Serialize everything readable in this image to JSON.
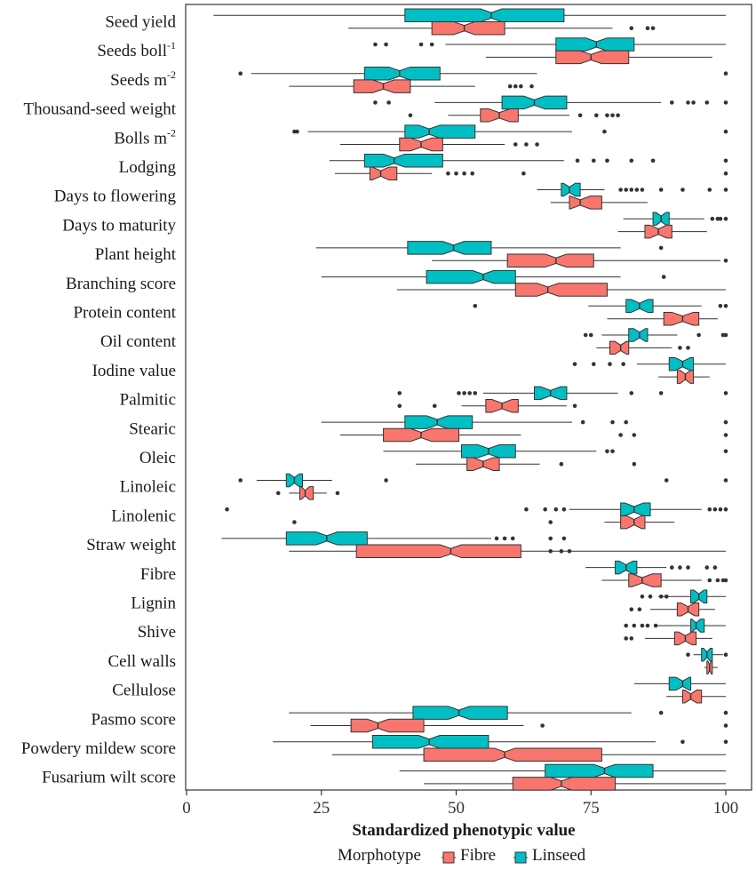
{
  "chart_data": {
    "type": "boxplot",
    "orientation": "horizontal",
    "xlabel": "Standardized phenotypic value",
    "xlim": [
      0,
      100
    ],
    "xticks": [
      0,
      25,
      50,
      75,
      100
    ],
    "legend": {
      "title": "Morphotype",
      "position": "bottom",
      "entries": [
        {
          "name": "Fibre",
          "color": "#F8766D"
        },
        {
          "name": "Linseed",
          "color": "#00BFC4"
        }
      ]
    },
    "series": [
      {
        "name": "Fibre",
        "color": "#F8766D"
      },
      {
        "name": "Linseed",
        "color": "#00BFC4"
      }
    ],
    "categories": [
      {
        "label": "Seed yield",
        "sup": "",
        "linseed": {
          "whisker": [
            5,
            100
          ],
          "q1": 40.5,
          "median": 56.5,
          "q3": 70,
          "outliers": []
        },
        "fibre": {
          "whisker": [
            30,
            79
          ],
          "q1": 45.5,
          "median": 51.5,
          "q3": 59,
          "outliers": [
            82.5,
            85.5,
            86.5
          ]
        }
      },
      {
        "label": "Seeds boll",
        "sup": "-1",
        "linseed": {
          "whisker": [
            48,
            100
          ],
          "q1": 68.5,
          "median": 76,
          "q3": 83,
          "outliers": [
            35,
            37,
            43.5,
            45.5
          ]
        },
        "fibre": {
          "whisker": [
            55.5,
            97.5
          ],
          "q1": 68.5,
          "median": 75,
          "q3": 82,
          "outliers": []
        }
      },
      {
        "label": "Seeds m",
        "sup": "-2",
        "linseed": {
          "whisker": [
            12,
            65
          ],
          "q1": 33,
          "median": 39.5,
          "q3": 47,
          "outliers": [
            10,
            100
          ]
        },
        "fibre": {
          "whisker": [
            19,
            53.5
          ],
          "q1": 31,
          "median": 36.5,
          "q3": 41.5,
          "outliers": [
            60,
            61,
            62,
            64
          ]
        }
      },
      {
        "label": "Thousand-seed weight",
        "sup": "",
        "linseed": {
          "whisker": [
            46,
            88
          ],
          "q1": 58.5,
          "median": 64.5,
          "q3": 70.5,
          "outliers": [
            35,
            37.5,
            90,
            93,
            94,
            96.5,
            100
          ]
        },
        "fibre": {
          "whisker": [
            48.5,
            71
          ],
          "q1": 54.5,
          "median": 58,
          "q3": 61.5,
          "outliers": [
            41.5,
            73,
            76,
            78,
            79,
            80
          ]
        }
      },
      {
        "label": "Bolls m",
        "sup": "-2",
        "linseed": {
          "whisker": [
            22.5,
            71.5
          ],
          "q1": 40.5,
          "median": 45,
          "q3": 53.5,
          "outliers": [
            20,
            20.5,
            77.5,
            100
          ]
        },
        "fibre": {
          "whisker": [
            28.5,
            59
          ],
          "q1": 39.5,
          "median": 43.5,
          "q3": 47.5,
          "outliers": [
            61,
            63,
            65
          ]
        }
      },
      {
        "label": "Lodging",
        "sup": "",
        "linseed": {
          "whisker": [
            26.5,
            70
          ],
          "q1": 33,
          "median": 38.5,
          "q3": 47.5,
          "outliers": [
            72.5,
            75.5,
            78,
            82.5,
            86.5,
            100
          ]
        },
        "fibre": {
          "whisker": [
            27.5,
            45.5
          ],
          "q1": 34,
          "median": 36,
          "q3": 39,
          "outliers": [
            48.5,
            50,
            51.5,
            53,
            62.5,
            100
          ]
        }
      },
      {
        "label": "Days to flowering",
        "sup": "",
        "linseed": {
          "whisker": [
            65,
            77.5
          ],
          "q1": 69.5,
          "median": 71,
          "q3": 73,
          "outliers": [
            80.5,
            81.5,
            82.5,
            83.5,
            84.5,
            88,
            92,
            97,
            100
          ]
        },
        "fibre": {
          "whisker": [
            67.5,
            85.5
          ],
          "q1": 71,
          "median": 73,
          "q3": 77,
          "outliers": []
        }
      },
      {
        "label": "Days to maturity",
        "sup": "",
        "linseed": {
          "whisker": [
            81,
            96
          ],
          "q1": 86.5,
          "median": 88,
          "q3": 89.5,
          "outliers": [
            97.5,
            98.5,
            99,
            100
          ]
        },
        "fibre": {
          "whisker": [
            80,
            96.5
          ],
          "q1": 85,
          "median": 87.5,
          "q3": 90,
          "outliers": []
        }
      },
      {
        "label": "Plant height",
        "sup": "",
        "linseed": {
          "whisker": [
            24,
            80.5
          ],
          "q1": 41,
          "median": 49.5,
          "q3": 56.5,
          "outliers": [
            88
          ]
        },
        "fibre": {
          "whisker": [
            45.5,
            99
          ],
          "q1": 59.5,
          "median": 68.5,
          "q3": 75.5,
          "outliers": [
            100
          ]
        }
      },
      {
        "label": "Branching score",
        "sup": "",
        "linseed": {
          "whisker": [
            25,
            80.5
          ],
          "q1": 44.5,
          "median": 55,
          "q3": 61,
          "outliers": [
            88.5
          ]
        },
        "fibre": {
          "whisker": [
            39,
            100
          ],
          "q1": 61,
          "median": 67,
          "q3": 78,
          "outliers": []
        }
      },
      {
        "label": "Protein content",
        "sup": "",
        "linseed": {
          "whisker": [
            74.5,
            95.5
          ],
          "q1": 81.5,
          "median": 84,
          "q3": 86.5,
          "outliers": [
            53.5,
            99,
            100
          ]
        },
        "fibre": {
          "whisker": [
            78,
            98.5
          ],
          "q1": 88.5,
          "median": 92,
          "q3": 95,
          "outliers": []
        }
      },
      {
        "label": "Oil content",
        "sup": "",
        "linseed": {
          "whisker": [
            77,
            91
          ],
          "q1": 82,
          "median": 84,
          "q3": 85.5,
          "outliers": [
            74,
            75,
            95,
            99.5,
            100
          ]
        },
        "fibre": {
          "whisker": [
            76,
            90
          ],
          "q1": 78.5,
          "median": 80.5,
          "q3": 82,
          "outliers": [
            91.5,
            93
          ]
        }
      },
      {
        "label": "Iodine value",
        "sup": "",
        "linseed": {
          "whisker": [
            83.5,
            100
          ],
          "q1": 89.5,
          "median": 92,
          "q3": 94,
          "outliers": [
            72,
            75.5,
            78.5,
            81
          ]
        },
        "fibre": {
          "whisker": [
            87.5,
            97
          ],
          "q1": 91,
          "median": 92.5,
          "q3": 94,
          "outliers": []
        }
      },
      {
        "label": "Palmitic",
        "sup": "",
        "linseed": {
          "whisker": [
            55,
            80
          ],
          "q1": 64.5,
          "median": 67.5,
          "q3": 70.5,
          "outliers": [
            39.5,
            50.5,
            51.5,
            52.5,
            53.5,
            82.5,
            88,
            100
          ]
        },
        "fibre": {
          "whisker": [
            51,
            70.5
          ],
          "q1": 55.5,
          "median": 58.5,
          "q3": 61.5,
          "outliers": [
            39.5,
            46,
            72
          ]
        }
      },
      {
        "label": "Stearic",
        "sup": "",
        "linseed": {
          "whisker": [
            25,
            71.5
          ],
          "q1": 40.5,
          "median": 46.5,
          "q3": 53,
          "outliers": [
            73.5,
            79,
            81.5,
            100
          ]
        },
        "fibre": {
          "whisker": [
            28.5,
            62
          ],
          "q1": 36.5,
          "median": 43.5,
          "q3": 50.5,
          "outliers": [
            80.5,
            83,
            100
          ]
        }
      },
      {
        "label": "Oleic",
        "sup": "",
        "linseed": {
          "whisker": [
            36.5,
            76
          ],
          "q1": 51,
          "median": 56,
          "q3": 61,
          "outliers": [
            78,
            79,
            100
          ]
        },
        "fibre": {
          "whisker": [
            42.5,
            65.5
          ],
          "q1": 52,
          "median": 55,
          "q3": 58,
          "outliers": [
            69.5,
            83
          ]
        }
      },
      {
        "label": "Linoleic",
        "sup": "",
        "linseed": {
          "whisker": [
            13,
            27
          ],
          "q1": 18.5,
          "median": 20,
          "q3": 21.5,
          "outliers": [
            10,
            37,
            89,
            100
          ]
        },
        "fibre": {
          "whisker": [
            19,
            26
          ],
          "q1": 21,
          "median": 22,
          "q3": 23.5,
          "outliers": [
            17,
            28
          ]
        }
      },
      {
        "label": "Linolenic",
        "sup": "",
        "linseed": {
          "whisker": [
            71,
            95.5
          ],
          "q1": 80.5,
          "median": 83,
          "q3": 86,
          "outliers": [
            7.5,
            63,
            66.5,
            68.5,
            70,
            97,
            98,
            99,
            100
          ]
        },
        "fibre": {
          "whisker": [
            77.5,
            90.5
          ],
          "q1": 80.5,
          "median": 83,
          "q3": 85,
          "outliers": [
            20,
            67.5
          ]
        }
      },
      {
        "label": "Straw weight",
        "sup": "",
        "linseed": {
          "whisker": [
            6.5,
            56.5
          ],
          "q1": 18.5,
          "median": 26,
          "q3": 33.5,
          "outliers": [
            57.5,
            59,
            60.5,
            67.5,
            70
          ]
        },
        "fibre": {
          "whisker": [
            19,
            100
          ],
          "q1": 31.5,
          "median": 49,
          "q3": 62,
          "outliers": [
            67.5,
            69.5,
            71
          ]
        }
      },
      {
        "label": "Fibre",
        "sup": "",
        "linseed": {
          "whisker": [
            74,
            89
          ],
          "q1": 79.5,
          "median": 81.5,
          "q3": 83.5,
          "outliers": [
            90,
            91.5,
            93,
            96.5,
            98
          ]
        },
        "fibre": {
          "whisker": [
            77,
            95.5
          ],
          "q1": 82,
          "median": 84.5,
          "q3": 88,
          "outliers": [
            97,
            98.5,
            99.5,
            100
          ]
        }
      },
      {
        "label": "Lignin",
        "sup": "",
        "linseed": {
          "whisker": [
            87.5,
            100
          ],
          "q1": 93.5,
          "median": 95,
          "q3": 96.5,
          "outliers": [
            84.5,
            86,
            88,
            89
          ]
        },
        "fibre": {
          "whisker": [
            86,
            98
          ],
          "q1": 91,
          "median": 93,
          "q3": 95,
          "outliers": [
            82.5,
            84
          ]
        }
      },
      {
        "label": "Shive",
        "sup": "",
        "linseed": {
          "whisker": [
            87,
            100
          ],
          "q1": 93.5,
          "median": 94.5,
          "q3": 96,
          "outliers": [
            81.5,
            83,
            84.5,
            85.5,
            87
          ]
        },
        "fibre": {
          "whisker": [
            85,
            97.5
          ],
          "q1": 90.5,
          "median": 92.5,
          "q3": 94.5,
          "outliers": [
            81.5,
            82.5
          ]
        }
      },
      {
        "label": "Cell walls",
        "sup": "",
        "linseed": {
          "whisker": [
            94,
            99.5
          ],
          "q1": 95.5,
          "median": 96.5,
          "q3": 97.5,
          "outliers": [
            93,
            100
          ]
        },
        "fibre": {
          "whisker": [
            96,
            98.5
          ],
          "q1": 96.5,
          "median": 97,
          "q3": 97.5,
          "outliers": []
        }
      },
      {
        "label": "Cellulose",
        "sup": "",
        "linseed": {
          "whisker": [
            83,
            100
          ],
          "q1": 89.5,
          "median": 92,
          "q3": 93.5,
          "outliers": []
        },
        "fibre": {
          "whisker": [
            89,
            100
          ],
          "q1": 92,
          "median": 93.5,
          "q3": 95.5,
          "outliers": []
        }
      },
      {
        "label": "Pasmo score",
        "sup": "",
        "linseed": {
          "whisker": [
            19,
            82.5
          ],
          "q1": 42,
          "median": 50.5,
          "q3": 59.5,
          "outliers": [
            88,
            100
          ]
        },
        "fibre": {
          "whisker": [
            23,
            62.5
          ],
          "q1": 30.5,
          "median": 35.5,
          "q3": 44,
          "outliers": [
            66,
            100
          ]
        }
      },
      {
        "label": "Powdery mildew score",
        "sup": "",
        "linseed": {
          "whisker": [
            16,
            87
          ],
          "q1": 34.5,
          "median": 45,
          "q3": 56,
          "outliers": [
            92,
            100
          ]
        },
        "fibre": {
          "whisker": [
            27,
            100
          ],
          "q1": 44,
          "median": 59,
          "q3": 77,
          "outliers": []
        }
      },
      {
        "label": "Fusarium wilt score",
        "sup": "",
        "linseed": {
          "whisker": [
            39.5,
            100
          ],
          "q1": 66.5,
          "median": 77.5,
          "q3": 86.5,
          "outliers": []
        },
        "fibre": {
          "whisker": [
            44,
            100
          ],
          "q1": 60.5,
          "median": 69.5,
          "q3": 79.5,
          "outliers": []
        }
      }
    ]
  }
}
